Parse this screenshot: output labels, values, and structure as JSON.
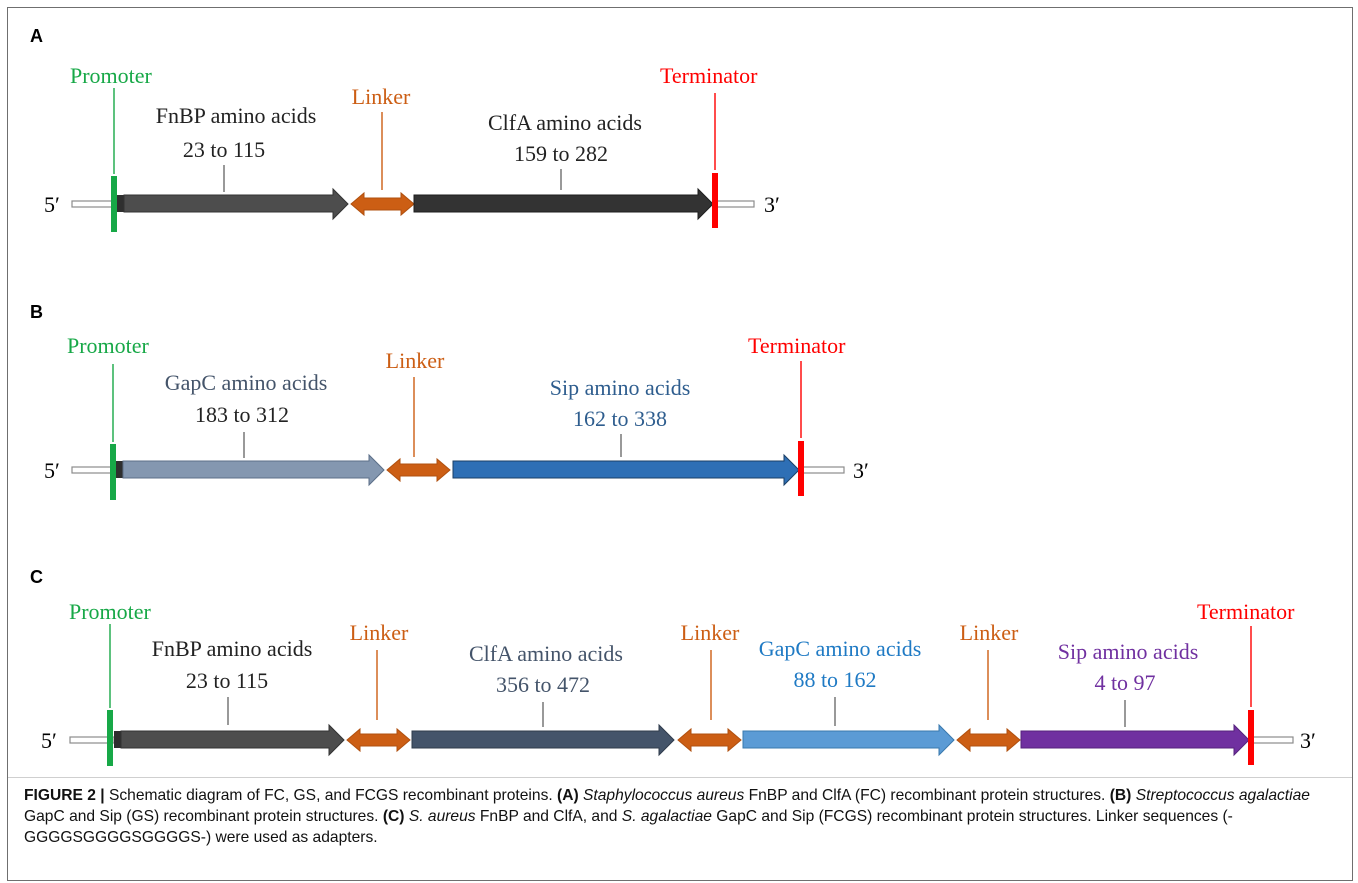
{
  "colors": {
    "promoter": "#17a847",
    "terminator": "#ff0000",
    "linker": "#cc5e14",
    "fnbp": "#4d4d4d",
    "clfa_a": "#333333",
    "gapc_b": "#8497b0",
    "sip_b": "#2e6fb5",
    "clfa_c": "#44546a",
    "gapc_c": "#5b9bd5",
    "sip_c": "#7030a0",
    "text_dark": "#222222",
    "text_navy": "#44546a",
    "text_blue_b": "#2e5d8e",
    "text_blue_c": "#1f7ac4",
    "text_purple": "#7030a0"
  },
  "panels": [
    {
      "letter": "A",
      "five_prime": "5′",
      "three_prime": "3′",
      "promoter": "Promoter",
      "terminator": "Terminator",
      "segments": [
        {
          "name": "FnBP amino acids",
          "range": "23 to 115"
        },
        {
          "name": "Linker"
        },
        {
          "name": "ClfA amino acids",
          "range": "159 to 282"
        }
      ]
    },
    {
      "letter": "B",
      "five_prime": "5′",
      "three_prime": "3′",
      "promoter": "Promoter",
      "terminator": "Terminator",
      "segments": [
        {
          "name": "GapC amino acids",
          "range": "183 to 312"
        },
        {
          "name": "Linker"
        },
        {
          "name": "Sip amino acids",
          "range": "162 to 338"
        }
      ]
    },
    {
      "letter": "C",
      "five_prime": "5′",
      "three_prime": "3′",
      "promoter": "Promoter",
      "terminator": "Terminator",
      "segments": [
        {
          "name": "FnBP amino acids",
          "range": "23 to 115"
        },
        {
          "name": "Linker"
        },
        {
          "name": "ClfA amino acids",
          "range": "356 to 472"
        },
        {
          "name": "Linker"
        },
        {
          "name": "GapC amino acids",
          "range": "88 to 162"
        },
        {
          "name": "Linker"
        },
        {
          "name": "Sip amino acids",
          "range": "4 to 97"
        }
      ]
    }
  ],
  "caption": {
    "figure": "FIGURE 2 |",
    "intro": " Schematic diagram of FC, GS, and FCGS recombinant proteins. ",
    "a_tag": "(A)",
    "a_species": "Staphylococcus aureus",
    "a_text": " FnBP and ClfA (FC) recombinant protein structures. ",
    "b_tag": "(B)",
    "b_species": "Streptococcus agalactiae",
    "b_text": " GapC and Sip (GS) recombinant protein structures. ",
    "c_tag": "(C)",
    "c_species1": "S. aureus",
    "c_text1": " FnBP and ClfA, and ",
    "c_species2": "S. agalactiae",
    "c_text2": " GapC and Sip (FCGS) recombinant protein structures. Linker sequences (-GGGGSGGGGSGGGGS-) were used as adapters."
  }
}
